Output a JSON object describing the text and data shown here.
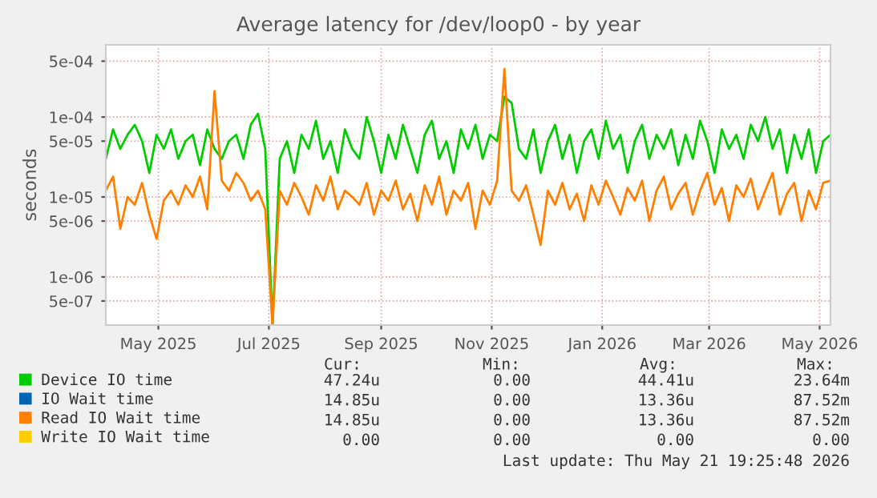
{
  "chart_data": {
    "type": "line",
    "title": "Average latency for /dev/loop0 - by year",
    "ylabel": "seconds",
    "x": [
      "2025-04-16",
      "2025-04-20",
      "2025-04-24",
      "2025-04-28",
      "2025-05-02",
      "2025-05-06",
      "2025-05-10",
      "2025-05-14",
      "2025-05-18",
      "2025-05-22",
      "2025-05-26",
      "2025-05-30",
      "2025-06-03",
      "2025-06-07",
      "2025-06-11",
      "2025-06-15",
      "2025-06-19",
      "2025-06-23",
      "2025-06-27",
      "2025-07-01",
      "2025-07-05",
      "2025-07-09",
      "2025-07-13",
      "2025-07-17",
      "2025-07-21",
      "2025-07-25",
      "2025-07-29",
      "2025-08-02",
      "2025-08-06",
      "2025-08-10",
      "2025-08-14",
      "2025-08-18",
      "2025-08-22",
      "2025-08-26",
      "2025-08-30",
      "2025-09-03",
      "2025-09-07",
      "2025-09-11",
      "2025-09-15",
      "2025-09-19",
      "2025-09-23",
      "2025-09-27",
      "2025-10-01",
      "2025-10-05",
      "2025-10-09",
      "2025-10-13",
      "2025-10-17",
      "2025-10-21",
      "2025-10-25",
      "2025-10-29",
      "2025-11-02",
      "2025-11-06",
      "2025-11-10",
      "2025-11-14",
      "2025-11-18",
      "2025-11-22",
      "2025-11-26",
      "2025-11-30",
      "2025-12-04",
      "2025-12-08",
      "2025-12-12",
      "2025-12-16",
      "2025-12-20",
      "2025-12-24",
      "2025-12-28",
      "2026-01-01",
      "2026-01-05",
      "2026-01-09",
      "2026-01-13",
      "2026-01-17",
      "2026-01-21",
      "2026-01-25",
      "2026-01-29",
      "2026-02-02",
      "2026-02-06",
      "2026-02-10",
      "2026-02-14",
      "2026-02-18",
      "2026-02-22",
      "2026-02-26",
      "2026-03-02",
      "2026-03-06",
      "2026-03-10",
      "2026-03-14",
      "2026-03-18",
      "2026-03-22",
      "2026-03-26",
      "2026-03-30",
      "2026-04-03",
      "2026-04-07",
      "2026-04-11",
      "2026-04-15",
      "2026-04-19",
      "2026-04-23",
      "2026-04-27",
      "2026-05-01",
      "2026-05-05",
      "2026-05-09",
      "2026-05-13",
      "2026-05-17",
      "2026-05-21"
    ],
    "series": [
      {
        "name": "Device IO time",
        "color": "#00cc00",
        "values": [
          3e-05,
          7e-05,
          4e-05,
          6e-05,
          8e-05,
          5e-05,
          2e-05,
          6e-05,
          4e-05,
          7e-05,
          3e-05,
          5e-05,
          6e-05,
          2.5e-05,
          7e-05,
          4e-05,
          3e-05,
          5e-05,
          6e-05,
          3e-05,
          8e-05,
          0.00011,
          4e-05,
          2.5e-07,
          3e-05,
          5e-05,
          2e-05,
          6e-05,
          4e-05,
          9e-05,
          3e-05,
          5e-05,
          2e-05,
          7e-05,
          4e-05,
          3e-05,
          0.0001,
          5e-05,
          2e-05,
          6e-05,
          3e-05,
          8e-05,
          4e-05,
          2e-05,
          6e-05,
          9e-05,
          3e-05,
          5e-05,
          2e-05,
          7e-05,
          4e-05,
          8e-05,
          3e-05,
          6e-05,
          5e-05,
          0.00018,
          0.00015,
          4e-05,
          3e-05,
          7e-05,
          2e-05,
          5e-05,
          8e-05,
          3e-05,
          6e-05,
          2e-05,
          5e-05,
          7e-05,
          3e-05,
          9e-05,
          4e-05,
          6e-05,
          2e-05,
          5e-05,
          8e-05,
          3e-05,
          6e-05,
          4e-05,
          7e-05,
          2.5e-05,
          6e-05,
          3e-05,
          9e-05,
          5e-05,
          2e-05,
          7e-05,
          4e-05,
          6e-05,
          3e-05,
          8e-05,
          5e-05,
          0.0001,
          4e-05,
          7e-05,
          2e-05,
          6e-05,
          3e-05,
          7e-05,
          2e-05,
          5e-05,
          6e-05
        ]
      },
      {
        "name": "IO Wait time",
        "color": "#0066b3",
        "values": [
          null,
          null,
          null,
          null,
          null,
          null,
          null,
          null,
          null,
          null,
          null,
          null,
          null,
          null,
          null,
          null,
          null,
          null,
          null,
          null,
          null,
          null,
          null,
          null,
          null,
          null,
          null,
          null,
          null,
          null,
          null,
          null,
          null,
          null,
          null,
          null,
          null,
          null,
          null,
          null,
          null,
          null,
          null,
          null,
          null,
          null,
          null,
          null,
          null,
          null,
          null,
          null,
          null,
          null,
          null,
          null,
          null,
          null,
          null,
          null,
          null,
          null,
          null,
          null,
          null,
          null,
          null,
          null,
          null,
          null,
          null,
          null,
          null,
          null,
          null,
          null,
          null,
          null,
          null,
          null,
          null,
          null,
          null,
          null,
          null,
          null,
          null,
          null,
          null,
          null,
          null,
          null,
          null,
          null,
          null,
          null,
          null,
          null,
          null,
          null,
          null
        ]
      },
      {
        "name": "Read IO Wait time",
        "color": "#ff8000",
        "values": [
          1.2e-05,
          1.8e-05,
          4e-06,
          1e-05,
          8e-06,
          1.5e-05,
          6e-06,
          3e-06,
          9e-06,
          1.2e-05,
          8e-06,
          1.4e-05,
          1e-05,
          1.8e-05,
          7e-06,
          0.00021,
          1.6e-05,
          1.2e-05,
          2e-05,
          1.5e-05,
          9e-06,
          1.2e-05,
          7e-06,
          2.5e-07,
          1.2e-05,
          8e-06,
          1.5e-05,
          1e-05,
          6e-06,
          1.4e-05,
          9e-06,
          1.8e-05,
          7e-06,
          1.2e-05,
          1e-05,
          8e-06,
          1.5e-05,
          6e-06,
          1.2e-05,
          9e-06,
          1.6e-05,
          7e-06,
          1.1e-05,
          5e-06,
          1.4e-05,
          8e-06,
          1.8e-05,
          6e-06,
          1.2e-05,
          9e-06,
          1.5e-05,
          4e-06,
          1.2e-05,
          8e-06,
          1.6e-05,
          0.0004,
          1.2e-05,
          9e-06,
          1.4e-05,
          6e-06,
          2.5e-06,
          1.2e-05,
          8e-06,
          1.5e-05,
          7e-06,
          1.1e-05,
          5e-06,
          1.4e-05,
          8e-06,
          1.6e-05,
          1e-05,
          6e-06,
          1.3e-05,
          9e-06,
          1.6e-05,
          5e-06,
          1.2e-05,
          1.8e-05,
          7e-06,
          1.1e-05,
          1.5e-05,
          6e-06,
          1.2e-05,
          2e-05,
          8e-06,
          1.3e-05,
          5e-06,
          1.4e-05,
          1e-05,
          1.7e-05,
          7e-06,
          1.2e-05,
          2e-05,
          6e-06,
          1.1e-05,
          1.5e-05,
          5e-06,
          1.2e-05,
          7e-06,
          1.5e-05,
          1.6e-05
        ]
      },
      {
        "name": "Write IO Wait time",
        "color": "#ffcc00",
        "values": [
          null,
          null,
          null,
          null,
          null,
          null,
          null,
          null,
          null,
          null,
          null,
          null,
          null,
          null,
          null,
          null,
          null,
          null,
          null,
          null,
          null,
          null,
          null,
          null,
          null,
          null,
          null,
          null,
          null,
          null,
          null,
          null,
          null,
          null,
          null,
          null,
          null,
          null,
          null,
          null,
          null,
          null,
          null,
          null,
          null,
          null,
          null,
          null,
          null,
          null,
          null,
          null,
          null,
          null,
          null,
          null,
          null,
          null,
          null,
          null,
          null,
          null,
          null,
          null,
          null,
          null,
          null,
          null,
          null,
          null,
          null,
          null,
          null,
          null,
          null,
          null,
          null,
          null,
          null,
          null,
          null,
          null,
          null,
          null,
          null,
          null,
          null,
          null,
          null,
          null,
          null,
          null,
          null,
          null,
          null,
          null,
          null,
          null,
          null,
          null,
          null
        ]
      }
    ],
    "log": "y",
    "xlim": [
      "2025-04-16",
      "2026-05-21"
    ],
    "xticks": [
      {
        "value": "2025-05-15",
        "label": "May 2025"
      },
      {
        "value": "2025-07-15",
        "label": "Jul 2025"
      },
      {
        "value": "2025-09-15",
        "label": "Sep 2025"
      },
      {
        "value": "2025-11-15",
        "label": "Nov 2025"
      },
      {
        "value": "2026-01-15",
        "label": "Jan 2026"
      },
      {
        "value": "2026-03-15",
        "label": "Mar 2026"
      },
      {
        "value": "2026-05-15",
        "label": "May 2026"
      }
    ],
    "ylim": [
      2.5e-07,
      0.0008
    ],
    "yticks": [
      {
        "value": 5e-07,
        "label": "5e-07"
      },
      {
        "value": 1e-06,
        "label": "1e-06"
      },
      {
        "value": 5e-06,
        "label": "5e-06"
      },
      {
        "value": 1e-05,
        "label": "1e-05"
      },
      {
        "value": 5e-05,
        "label": "5e-05"
      },
      {
        "value": 0.0001,
        "label": "1e-04"
      },
      {
        "value": 0.0005,
        "label": "5e-04"
      }
    ],
    "grid": true,
    "legend": "bottom",
    "annotations": [
      "Cur:",
      "Min:",
      "Avg:",
      "Max:",
      "47.24u",
      "0.00",
      "44.41u",
      "23.64m",
      "14.85u",
      "0.00",
      "13.36u",
      "87.52m",
      "14.85u",
      "0.00",
      "13.36u",
      "87.52m",
      "0.00",
      "0.00",
      "0.00",
      "0.00",
      "Last update: Thu May 21 19:25:48 2026"
    ]
  }
}
